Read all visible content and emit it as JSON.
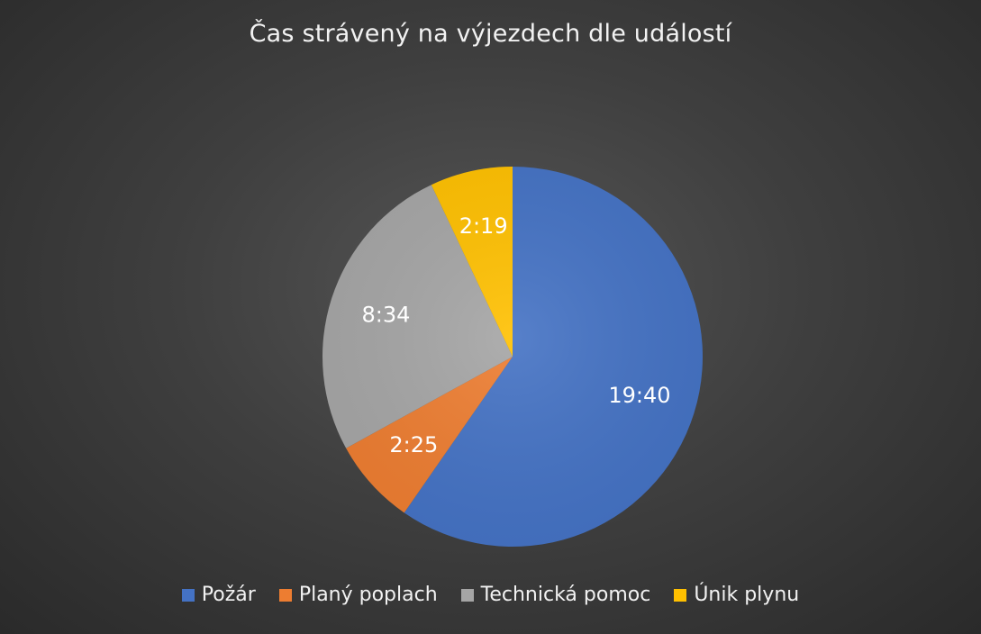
{
  "chart_data": {
    "type": "pie",
    "title": "Čas strávený na výjezdech dle událostí",
    "categories": [
      "Požár",
      "Planý poplach",
      "Technická pomoc",
      "Únik plynu"
    ],
    "values_minutes": [
      1180,
      145,
      514,
      139
    ],
    "labels": [
      "19:40",
      "2:25",
      "8:34",
      "2:19"
    ],
    "colors": [
      "#4472C4",
      "#ED7D31",
      "#A5A5A5",
      "#FFC000"
    ],
    "start_angle_deg": 0,
    "direction": "clockwise",
    "legend_position": "bottom"
  }
}
